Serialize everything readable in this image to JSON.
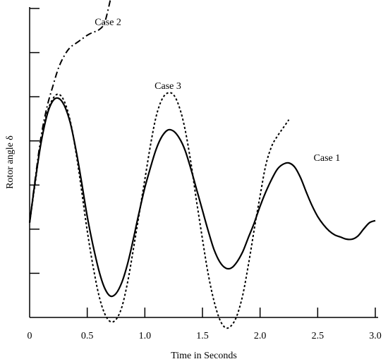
{
  "chart_data": {
    "type": "line",
    "xlabel": "Time in Seconds",
    "ylabel": "Rotor angle δ",
    "xlim": [
      0,
      3.0
    ],
    "ylim": [
      0,
      7.5
    ],
    "x_ticks": [
      "0",
      "0.5",
      "1.0",
      "1.5",
      "2.0",
      "2.5",
      "3.0"
    ],
    "x_tick_values": [
      0,
      0.5,
      1.0,
      1.5,
      2.0,
      2.5,
      3.0
    ],
    "y_tick_count": 7,
    "y_tick_labels_shown": false,
    "grid": false,
    "legend": "none (series labelled directly on plot)",
    "series": [
      {
        "name": "Case 1",
        "style": "solid",
        "color": "#000000",
        "x": [
          0,
          0.05,
          0.1,
          0.15,
          0.2,
          0.25,
          0.3,
          0.35,
          0.4,
          0.45,
          0.5,
          0.55,
          0.6,
          0.65,
          0.7,
          0.75,
          0.8,
          0.85,
          0.9,
          0.95,
          1.0,
          1.05,
          1.1,
          1.15,
          1.2,
          1.25,
          1.3,
          1.35,
          1.4,
          1.45,
          1.5,
          1.55,
          1.6,
          1.65,
          1.7,
          1.75,
          1.8,
          1.85,
          1.9,
          1.95,
          2.0,
          2.05,
          2.1,
          2.15,
          2.2,
          2.25,
          2.3,
          2.35,
          2.4,
          2.45,
          2.5,
          2.55,
          2.6,
          2.65,
          2.7,
          2.75,
          2.8,
          2.85,
          2.9,
          2.95,
          3.0
        ],
        "values": [
          2.3,
          3.35,
          4.25,
          4.9,
          5.25,
          5.32,
          5.15,
          4.75,
          4.1,
          3.3,
          2.45,
          1.75,
          1.15,
          0.72,
          0.52,
          0.58,
          0.85,
          1.3,
          1.9,
          2.55,
          3.15,
          3.65,
          4.1,
          4.4,
          4.55,
          4.52,
          4.35,
          4.05,
          3.6,
          3.1,
          2.6,
          2.1,
          1.65,
          1.35,
          1.2,
          1.2,
          1.35,
          1.6,
          1.95,
          2.3,
          2.7,
          3.05,
          3.35,
          3.6,
          3.72,
          3.75,
          3.65,
          3.4,
          3.05,
          2.72,
          2.45,
          2.25,
          2.1,
          2.0,
          1.95,
          1.9,
          1.9,
          1.98,
          2.15,
          2.3,
          2.35
        ]
      },
      {
        "name": "Case 2",
        "style": "dash-dot",
        "color": "#000000",
        "x": [
          0,
          0.05,
          0.1,
          0.15,
          0.2,
          0.25,
          0.3,
          0.35,
          0.4,
          0.45,
          0.5,
          0.55,
          0.6,
          0.65,
          0.7
        ],
        "values": [
          2.3,
          3.4,
          4.4,
          5.1,
          5.6,
          6.05,
          6.35,
          6.55,
          6.65,
          6.75,
          6.85,
          6.92,
          6.98,
          7.15,
          7.7
        ]
      },
      {
        "name": "Case 3",
        "style": "dotted",
        "color": "#000000",
        "x": [
          0,
          0.05,
          0.1,
          0.15,
          0.2,
          0.25,
          0.3,
          0.35,
          0.4,
          0.45,
          0.5,
          0.55,
          0.6,
          0.65,
          0.7,
          0.75,
          0.8,
          0.85,
          0.9,
          0.95,
          1.0,
          1.05,
          1.1,
          1.15,
          1.2,
          1.25,
          1.3,
          1.35,
          1.4,
          1.45,
          1.5,
          1.55,
          1.6,
          1.65,
          1.7,
          1.75,
          1.8,
          1.85,
          1.9,
          1.95,
          2.0,
          2.05,
          2.1,
          2.15,
          2.2,
          2.25
        ],
        "values": [
          2.3,
          3.3,
          4.3,
          4.95,
          5.3,
          5.42,
          5.25,
          4.8,
          4.05,
          3.1,
          2.1,
          1.25,
          0.55,
          0.1,
          -0.1,
          -0.05,
          0.25,
          0.85,
          1.65,
          2.5,
          3.35,
          4.2,
          4.9,
          5.3,
          5.45,
          5.4,
          5.1,
          4.55,
          3.75,
          2.8,
          1.9,
          1.05,
          0.4,
          -0.05,
          -0.25,
          -0.2,
          0.05,
          0.55,
          1.3,
          2.15,
          2.95,
          3.7,
          4.15,
          4.4,
          4.6,
          4.8
        ]
      }
    ],
    "annotations": [
      {
        "text": "Case 1",
        "x": 2.58,
        "y": 3.8
      },
      {
        "text": "Case 2",
        "x": 0.68,
        "y": 7.1
      },
      {
        "text": "Case 3",
        "x": 1.2,
        "y": 5.55
      }
    ]
  }
}
